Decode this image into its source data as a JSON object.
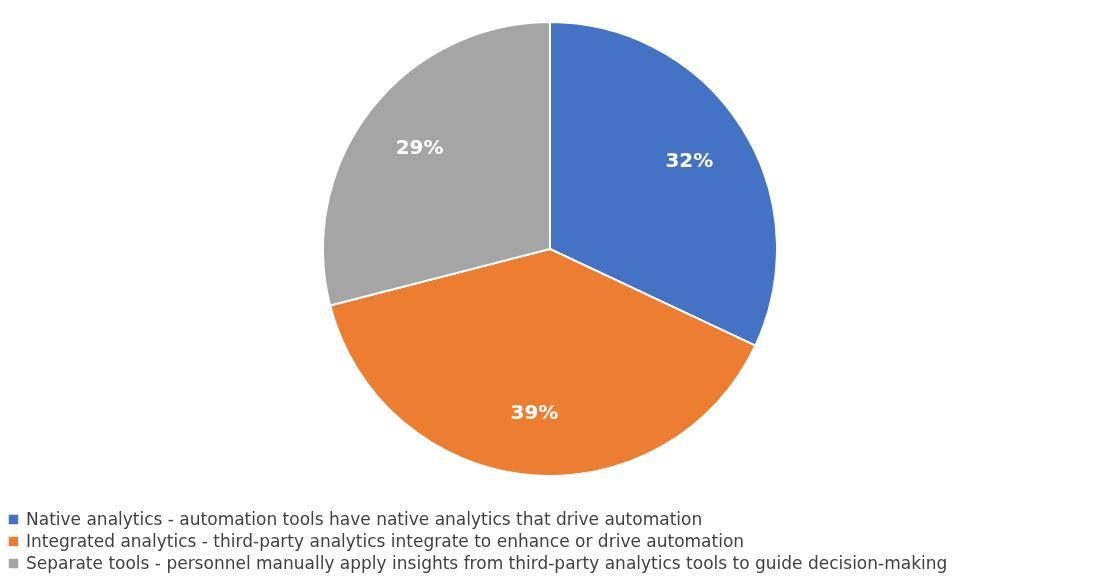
{
  "chart_data": {
    "type": "pie",
    "categories": [
      "Native analytics - automation tools have native analytics that drive automation",
      "Integrated analytics - third-party analytics integrate to enhance or drive automation",
      "Separate tools - personnel manually apply insights from third-party analytics tools to guide decision-making"
    ],
    "values": [
      32,
      39,
      29
    ],
    "colors": [
      "#4472c4",
      "#ed7d31",
      "#a5a5a5"
    ],
    "value_labels": [
      "32%",
      "39%",
      "29%"
    ],
    "legend": "bottom"
  }
}
